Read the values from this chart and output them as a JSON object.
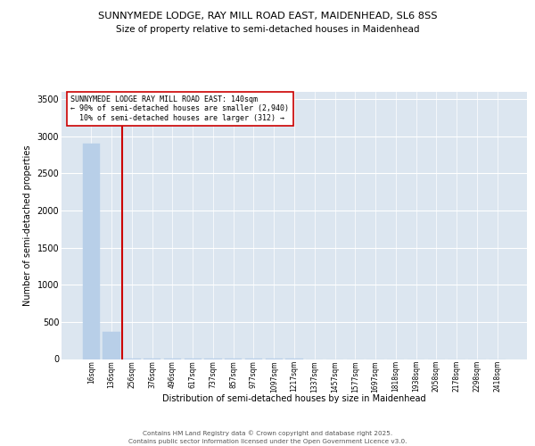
{
  "title1": "SUNNYMEDE LODGE, RAY MILL ROAD EAST, MAIDENHEAD, SL6 8SS",
  "title2": "Size of property relative to semi-detached houses in Maidenhead",
  "xlabel": "Distribution of semi-detached houses by size in Maidenhead",
  "ylabel": "Number of semi-detached properties",
  "categories": [
    "16sqm",
    "136sqm",
    "256sqm",
    "376sqm",
    "496sqm",
    "617sqm",
    "737sqm",
    "857sqm",
    "977sqm",
    "1097sqm",
    "1217sqm",
    "1337sqm",
    "1457sqm",
    "1577sqm",
    "1697sqm",
    "1818sqm",
    "1938sqm",
    "2058sqm",
    "2178sqm",
    "2298sqm",
    "2418sqm"
  ],
  "values": [
    2900,
    370,
    10,
    5,
    2,
    1,
    1,
    1,
    1,
    1,
    1,
    0,
    0,
    0,
    0,
    0,
    0,
    0,
    0,
    0,
    0
  ],
  "bar_color": "#b8cfe8",
  "bar_edge_color": "#b8cfe8",
  "background_color": "#dce6f0",
  "grid_color": "#ffffff",
  "vline_x_index": 1,
  "vline_color": "#cc0000",
  "annotation_line1": "SUNNYMEDE LODGE RAY MILL ROAD EAST: 140sqm",
  "annotation_line2": "← 90% of semi-detached houses are smaller (2,940)",
  "annotation_line3": "  10% of semi-detached houses are larger (312) →",
  "annotation_box_color": "#ffffff",
  "annotation_box_edge": "#cc0000",
  "footer": "Contains HM Land Registry data © Crown copyright and database right 2025.\nContains public sector information licensed under the Open Government Licence v3.0.",
  "ylim": [
    0,
    3600
  ],
  "yticks": [
    0,
    500,
    1000,
    1500,
    2000,
    2500,
    3000,
    3500
  ]
}
